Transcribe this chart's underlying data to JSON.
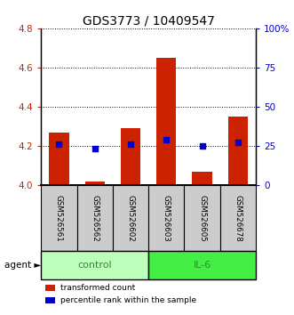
{
  "title": "GDS3773 / 10409547",
  "samples": [
    "GSM526561",
    "GSM526562",
    "GSM526602",
    "GSM526603",
    "GSM526605",
    "GSM526678"
  ],
  "groups": [
    "control",
    "control",
    "control",
    "IL-6",
    "IL-6",
    "IL-6"
  ],
  "transformed_counts": [
    4.27,
    4.02,
    4.29,
    4.65,
    4.07,
    4.35
  ],
  "percentile_ranks": [
    26,
    23,
    26,
    29,
    25,
    27
  ],
  "bar_bottom": 4.0,
  "ylim_left": [
    4.0,
    4.8
  ],
  "ylim_right": [
    0,
    100
  ],
  "yticks_left": [
    4.0,
    4.2,
    4.4,
    4.6,
    4.8
  ],
  "yticks_right": [
    0,
    25,
    50,
    75,
    100
  ],
  "ytick_labels_right": [
    "0",
    "25",
    "50",
    "75",
    "100%"
  ],
  "bar_color": "#cc2200",
  "dot_color": "#0000cc",
  "left_tick_color": "#cc2200",
  "right_tick_color": "#0000cc",
  "group_colors": {
    "control": "#bbffbb",
    "IL-6": "#44ee44"
  },
  "group_label_color": "#338833",
  "agent_label": "agent",
  "legend_items": [
    {
      "label": "transformed count",
      "color": "#cc2200"
    },
    {
      "label": "percentile rank within the sample",
      "color": "#0000cc"
    }
  ],
  "sample_box_color": "#cccccc",
  "grid_color": "#000000",
  "bar_width": 0.55
}
